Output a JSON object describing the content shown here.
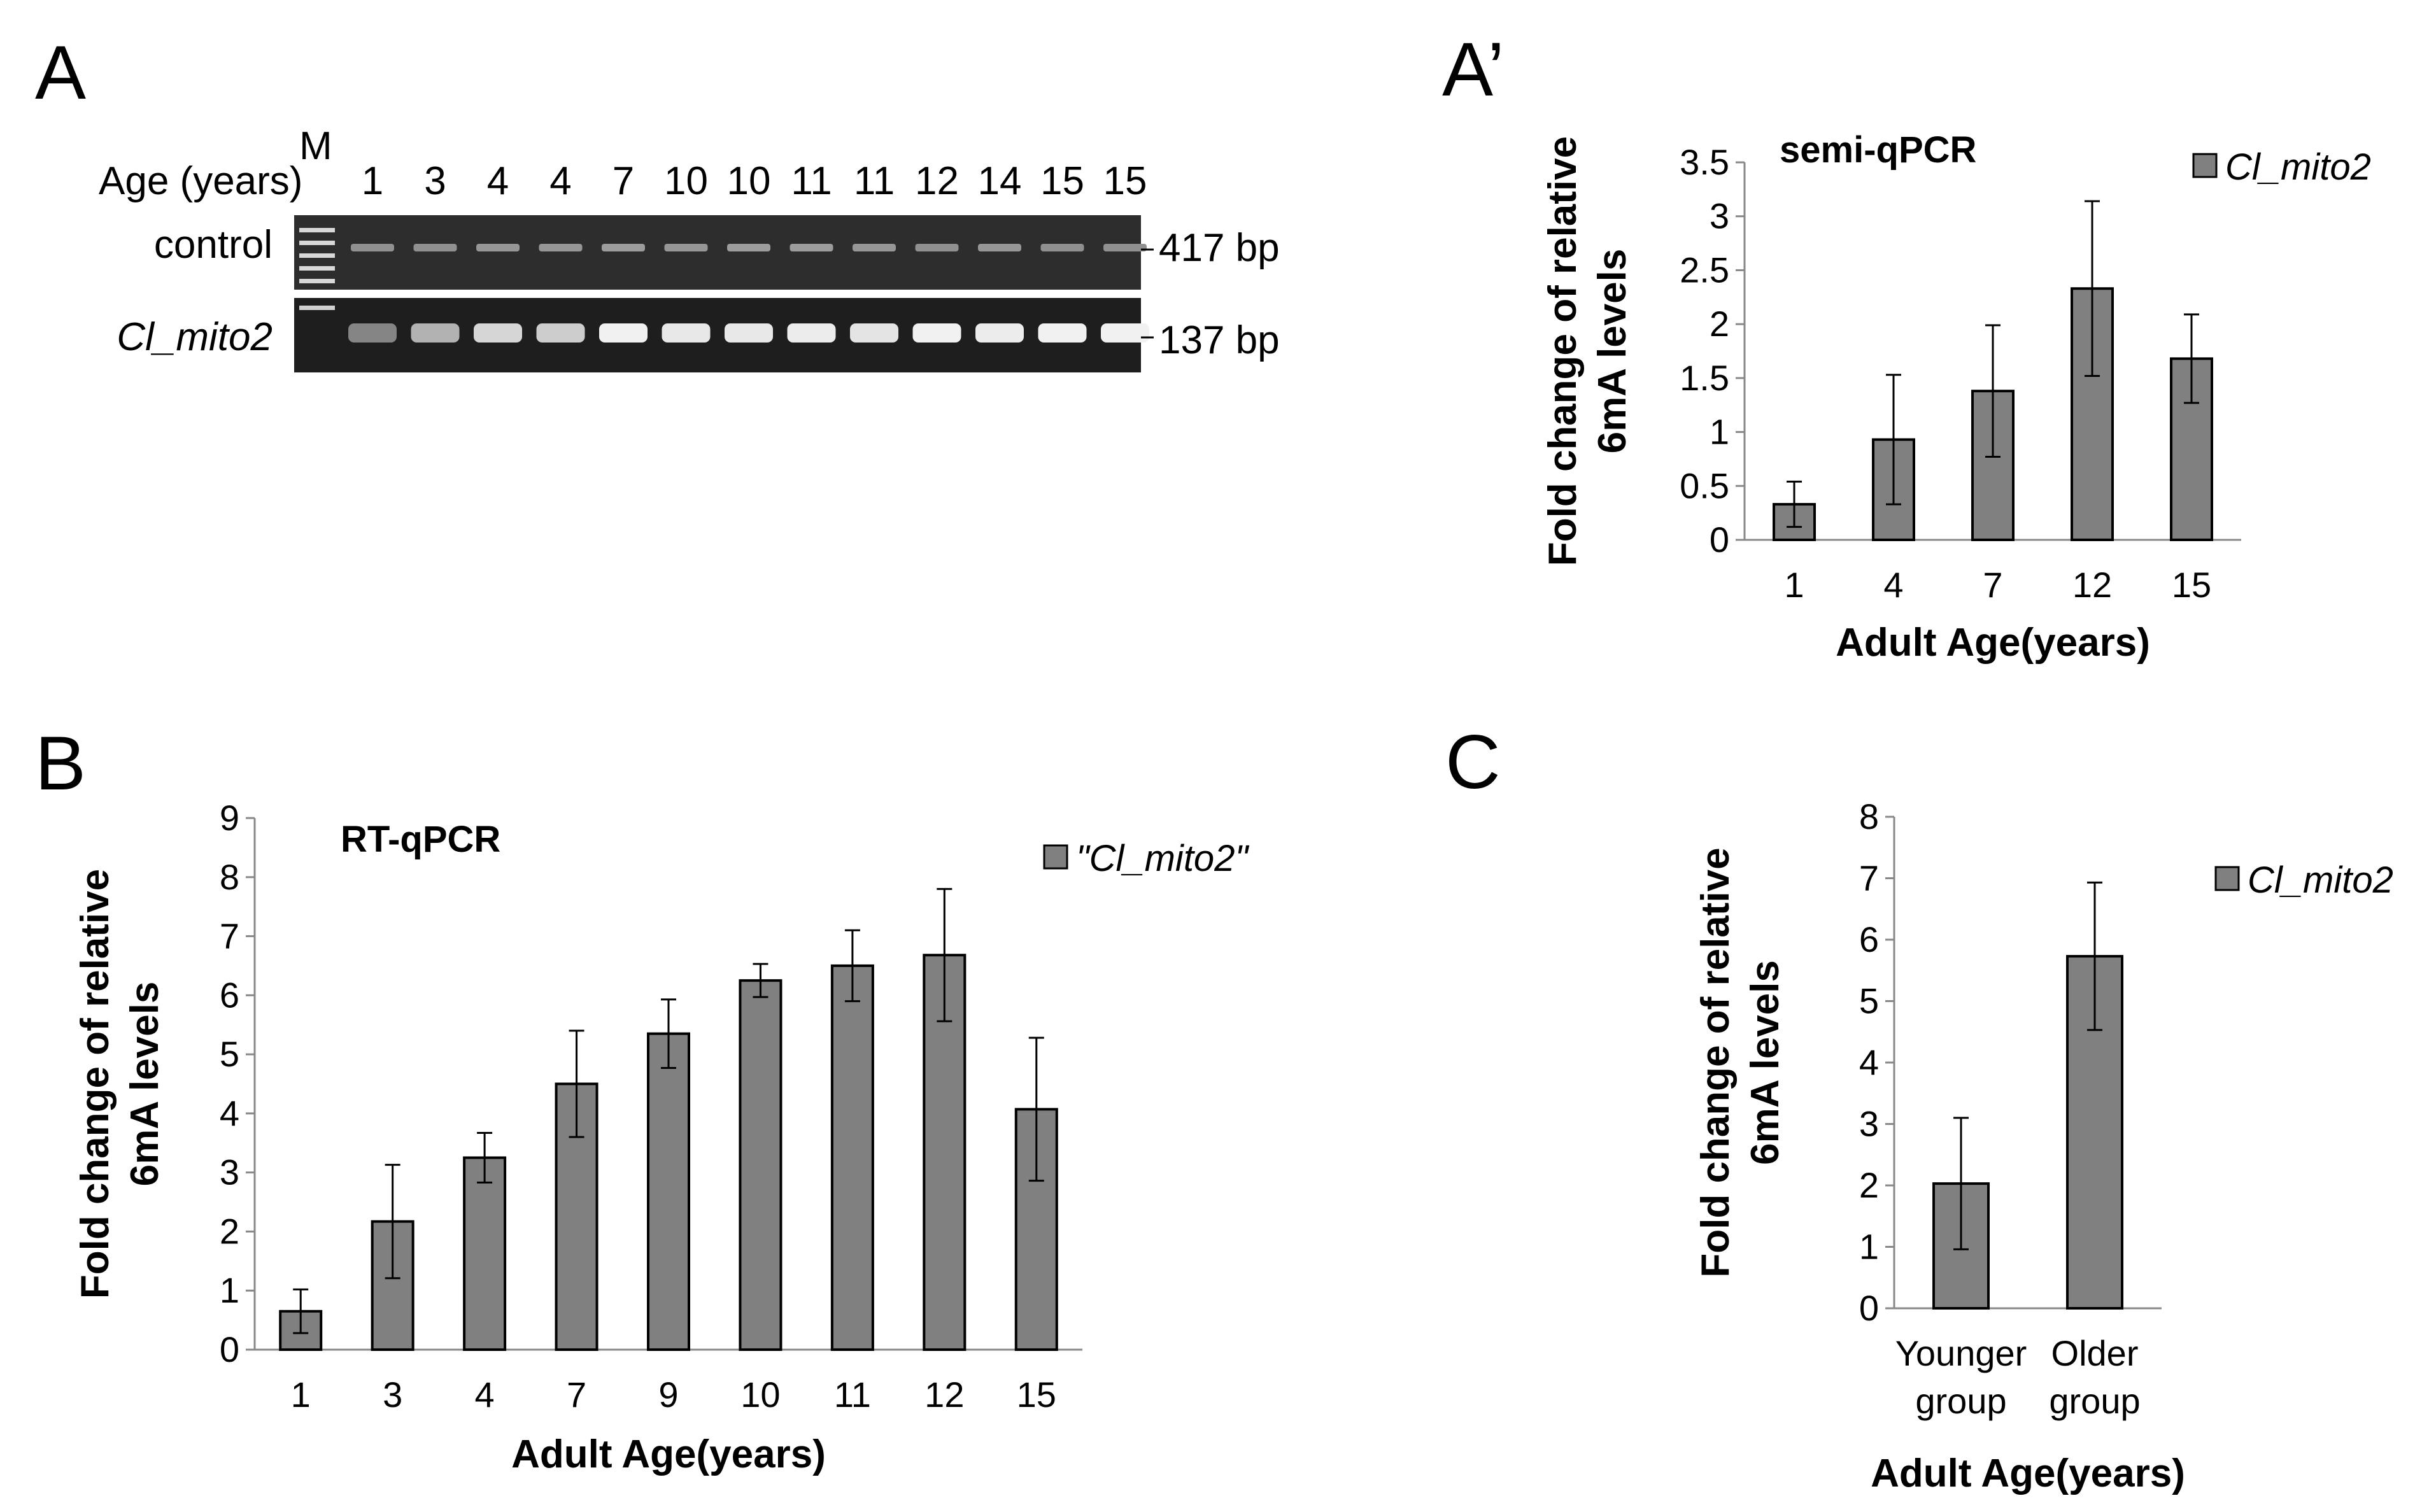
{
  "panels": {
    "A": "A",
    "A_prime": "A’",
    "B": "B",
    "C": "C"
  },
  "gel": {
    "marker_label": "M",
    "age_label": "Age (years)",
    "lane_ages": [
      "1",
      "3",
      "4",
      "4",
      "7",
      "10",
      "10",
      "11",
      "11",
      "12",
      "14",
      "15",
      "15"
    ],
    "control_label": "control",
    "control_size": "417 bp",
    "target_label": "Cl_mito2",
    "target_size": "137 bp",
    "control_band_intensity": [
      0.45,
      0.45,
      0.5,
      0.5,
      0.55,
      0.5,
      0.55,
      0.55,
      0.5,
      0.45,
      0.5,
      0.45,
      0.45
    ],
    "target_band_intensity": [
      0.35,
      0.6,
      0.8,
      0.75,
      0.95,
      0.9,
      0.9,
      0.92,
      0.88,
      0.95,
      0.92,
      0.95,
      0.95
    ]
  },
  "chart_data": [
    {
      "id": "A_prime",
      "type": "bar",
      "title": "semi-qPCR",
      "xlabel": "Adult Age(years)",
      "ylabel": "Fold change of relative 6mA levels",
      "ylabel_lines": [
        "Fold change of relative",
        "6mA levels"
      ],
      "categories": [
        "1",
        "4",
        "7",
        "12",
        "15"
      ],
      "series": [
        {
          "name": "Cl_mito2",
          "values": [
            0.33,
            0.93,
            1.38,
            2.33,
            1.68
          ],
          "errors": [
            0.21,
            0.6,
            0.61,
            0.81,
            0.41
          ]
        }
      ],
      "ylim": [
        0,
        3.5
      ],
      "yticks": [
        "0",
        "0.5",
        "1",
        "1.5",
        "2",
        "2.5",
        "3",
        "3.5"
      ],
      "bar_color": "#808080",
      "legend_position": "top-right",
      "grid": false
    },
    {
      "id": "B",
      "type": "bar",
      "title": "RT-qPCR",
      "xlabel": "Adult Age(years)",
      "ylabel": "Fold change of relative 6mA levels",
      "ylabel_lines": [
        "Fold change of relative",
        "6mA levels"
      ],
      "categories": [
        "1",
        "3",
        "4",
        "7",
        "9",
        "10",
        "11",
        "12",
        "15"
      ],
      "series": [
        {
          "name": "\"Cl_mito2\"",
          "values": [
            0.65,
            2.17,
            3.25,
            4.5,
            5.35,
            6.25,
            6.5,
            6.68,
            4.07
          ],
          "errors": [
            0.37,
            0.96,
            0.42,
            0.9,
            0.58,
            0.28,
            0.6,
            1.12,
            1.21
          ]
        }
      ],
      "ylim": [
        0,
        9
      ],
      "yticks": [
        "0",
        "1",
        "2",
        "3",
        "4",
        "5",
        "6",
        "7",
        "8",
        "9"
      ],
      "bar_color": "#808080",
      "legend_position": "top-right",
      "grid": false
    },
    {
      "id": "C",
      "type": "bar",
      "title": "",
      "xlabel": "Adult Age(years)",
      "ylabel": "Fold change of relative 6mA levels",
      "ylabel_lines": [
        "Fold change of relative",
        "6mA levels"
      ],
      "categories": [
        [
          "Younger",
          "group"
        ],
        [
          "Older",
          "group"
        ]
      ],
      "series": [
        {
          "name": "Cl_mito2",
          "values": [
            2.03,
            5.73
          ],
          "errors": [
            1.07,
            1.2
          ]
        }
      ],
      "ylim": [
        0,
        8
      ],
      "yticks": [
        "0",
        "1",
        "2",
        "3",
        "4",
        "5",
        "6",
        "7",
        "8"
      ],
      "bar_color": "#808080",
      "legend_position": "right",
      "grid": false
    }
  ]
}
